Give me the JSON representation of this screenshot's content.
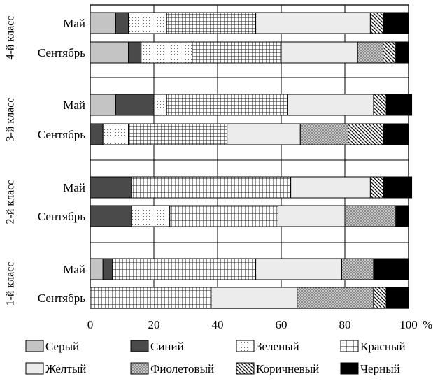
{
  "chart_data": {
    "type": "bar",
    "orientation": "horizontal",
    "stacked": true,
    "xlim": [
      0,
      100
    ],
    "x_ticks": [
      "0",
      "20",
      "40",
      "60",
      "80",
      "100"
    ],
    "x_unit": "%",
    "grid": true,
    "legend_position": "bottom",
    "categories": [
      {
        "group": "4-й класс",
        "label": "Май"
      },
      {
        "group": "4-й класс",
        "label": "Сентябрь"
      },
      {
        "group": "3-й класс",
        "label": "Май"
      },
      {
        "group": "3-й класс",
        "label": "Сентябрь"
      },
      {
        "group": "2-й класс",
        "label": "Май"
      },
      {
        "group": "2-й класс",
        "label": "Сентябрь"
      },
      {
        "group": "1-й класс",
        "label": "Май"
      },
      {
        "group": "1-й класс",
        "label": "Сентябрь"
      }
    ],
    "groups": [
      "4-й класс",
      "3-й класс",
      "2-й класс",
      "1-й класс"
    ],
    "series": [
      {
        "name": "Серый",
        "pattern": "gray",
        "values": [
          8,
          12,
          8,
          0,
          0,
          0,
          4,
          0
        ]
      },
      {
        "name": "Синий",
        "pattern": "dark",
        "values": [
          4,
          4,
          12,
          4,
          13,
          13,
          3,
          0
        ]
      },
      {
        "name": "Зеленый",
        "pattern": "dots",
        "values": [
          12,
          16,
          4,
          8,
          0,
          12,
          0,
          0
        ]
      },
      {
        "name": "Красный",
        "pattern": "grid",
        "values": [
          28,
          28,
          38,
          31,
          50,
          34,
          45,
          38
        ]
      },
      {
        "name": "Желтый",
        "pattern": "light",
        "values": [
          36,
          24,
          27,
          23,
          25,
          21,
          27,
          27
        ]
      },
      {
        "name": "Фиолетовый",
        "pattern": "cross",
        "values": [
          0,
          8,
          0,
          15,
          0,
          16,
          10,
          24
        ]
      },
      {
        "name": "Коричневый",
        "pattern": "hatch",
        "values": [
          4,
          4,
          4,
          11,
          4,
          0,
          0,
          4
        ]
      },
      {
        "name": "Черный",
        "pattern": "black",
        "values": [
          8,
          4,
          8,
          8,
          9,
          4,
          11,
          7
        ]
      }
    ]
  }
}
